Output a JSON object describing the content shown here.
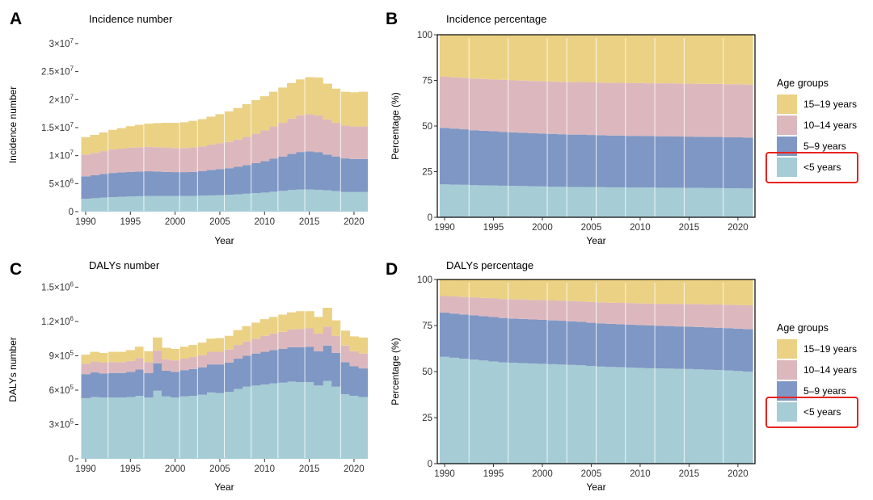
{
  "colors": {
    "u5": "#a6cdd6",
    "y5_9": "#7f97c4",
    "y10_14": "#dcb8be",
    "y15_19": "#ebd184",
    "highlight": "#e8231e"
  },
  "chart_data": [
    {
      "tag": "A",
      "title": "Incidence number",
      "type": "area",
      "stacked": true,
      "xlabel": "Year",
      "ylabel": "Incidence number",
      "x": [
        1990,
        1991,
        1992,
        1993,
        1994,
        1995,
        1996,
        1997,
        1998,
        1999,
        2000,
        2001,
        2002,
        2003,
        2004,
        2005,
        2006,
        2007,
        2008,
        2009,
        2010,
        2011,
        2012,
        2013,
        2014,
        2015,
        2016,
        2017,
        2018,
        2019,
        2020,
        2021
      ],
      "ylim": [
        0,
        31000000
      ],
      "y_ticks": [
        0,
        5000000,
        10000000,
        15000000,
        20000000,
        25000000,
        30000000
      ],
      "y_tick_labels": [
        {
          "base": "0",
          "exp": ""
        },
        {
          "base": "5×10",
          "exp": "6"
        },
        {
          "base": "1×10",
          "exp": "7"
        },
        {
          "base": "1.5×10",
          "exp": "7"
        },
        {
          "base": "2×10",
          "exp": "7"
        },
        {
          "base": "2.5×10",
          "exp": "7"
        },
        {
          "base": "3×10",
          "exp": "7"
        }
      ],
      "x_ticks": [
        1990,
        1995,
        2000,
        2005,
        2010,
        2015,
        2020
      ],
      "panel_border": false,
      "series": [
        {
          "name": "<5 years",
          "key": "u5",
          "values": [
            2300000,
            2400000,
            2500000,
            2600000,
            2650000,
            2700000,
            2750000,
            2800000,
            2800000,
            2800000,
            2800000,
            2800000,
            2800000,
            2850000,
            2900000,
            2950000,
            3000000,
            3100000,
            3200000,
            3300000,
            3400000,
            3550000,
            3700000,
            3850000,
            3950000,
            3950000,
            3900000,
            3800000,
            3650000,
            3500000,
            3500000,
            3500000
          ]
        },
        {
          "name": "5–9 years",
          "key": "y5_9",
          "values": [
            4000000,
            4100000,
            4200000,
            4300000,
            4350000,
            4400000,
            4400000,
            4400000,
            4350000,
            4300000,
            4250000,
            4250000,
            4300000,
            4400000,
            4550000,
            4650000,
            4750000,
            4900000,
            5100000,
            5350000,
            5600000,
            5900000,
            6150000,
            6450000,
            6700000,
            6800000,
            6700000,
            6400000,
            6200000,
            6000000,
            5900000,
            5900000
          ]
        },
        {
          "name": "10–14 years",
          "key": "y10_14",
          "values": [
            3900000,
            4000000,
            4100000,
            4200000,
            4250000,
            4300000,
            4350000,
            4350000,
            4350000,
            4350000,
            4300000,
            4300000,
            4350000,
            4400000,
            4500000,
            4600000,
            4700000,
            4850000,
            5050000,
            5250000,
            5500000,
            5750000,
            6000000,
            6300000,
            6550000,
            6650000,
            6550000,
            6250000,
            6000000,
            5850000,
            5800000,
            5800000
          ]
        },
        {
          "name": "15–19 years",
          "key": "y15_19",
          "values": [
            3100000,
            3200000,
            3350000,
            3500000,
            3650000,
            3850000,
            4000000,
            4150000,
            4300000,
            4400000,
            4500000,
            4600000,
            4750000,
            4850000,
            5000000,
            5200000,
            5450000,
            5650000,
            5850000,
            6000000,
            6100000,
            6200000,
            6300000,
            6350000,
            6400000,
            6600000,
            6800000,
            6400000,
            6100000,
            6050000,
            6100000,
            6200000
          ]
        }
      ]
    },
    {
      "tag": "B",
      "title": "Incidence percentage",
      "type": "area",
      "stacked": true,
      "xlabel": "Year",
      "ylabel": "Percentage (%)",
      "x": [
        1990,
        1991,
        1992,
        1993,
        1994,
        1995,
        1996,
        1997,
        1998,
        1999,
        2000,
        2001,
        2002,
        2003,
        2004,
        2005,
        2006,
        2007,
        2008,
        2009,
        2010,
        2011,
        2012,
        2013,
        2014,
        2015,
        2016,
        2017,
        2018,
        2019,
        2020,
        2021
      ],
      "ylim": [
        0,
        100
      ],
      "y_ticks": [
        0,
        25,
        50,
        75,
        100
      ],
      "y_tick_labels": [
        {
          "base": "0",
          "exp": ""
        },
        {
          "base": "25",
          "exp": ""
        },
        {
          "base": "50",
          "exp": ""
        },
        {
          "base": "75",
          "exp": ""
        },
        {
          "base": "100",
          "exp": ""
        }
      ],
      "x_ticks": [
        1990,
        1995,
        2000,
        2005,
        2010,
        2015,
        2020
      ],
      "panel_border": true,
      "series": [
        {
          "name": "<5 years",
          "key": "u5",
          "values": [
            18.0,
            17.9,
            17.8,
            17.6,
            17.5,
            17.4,
            17.3,
            17.2,
            17.1,
            17.0,
            16.9,
            16.8,
            16.7,
            16.6,
            16.6,
            16.5,
            16.5,
            16.4,
            16.4,
            16.3,
            16.3,
            16.3,
            16.2,
            16.2,
            16.2,
            16.1,
            16.1,
            16.0,
            16.0,
            15.9,
            15.9,
            15.8
          ]
        },
        {
          "name": "5–9 years",
          "key": "y5_9",
          "values": [
            31.0,
            30.7,
            30.4,
            30.1,
            29.9,
            29.7,
            29.5,
            29.3,
            29.2,
            29.1,
            29.0,
            28.9,
            28.8,
            28.7,
            28.7,
            28.6,
            28.5,
            28.4,
            28.4,
            28.3,
            28.3,
            28.2,
            28.2,
            28.2,
            28.1,
            28.1,
            28.0,
            28.0,
            28.0,
            27.9,
            27.9,
            27.8
          ]
        },
        {
          "name": "10–14 years",
          "key": "y10_14",
          "values": [
            28.0,
            28.1,
            28.2,
            28.3,
            28.4,
            28.4,
            28.5,
            28.5,
            28.6,
            28.6,
            28.6,
            28.7,
            28.7,
            28.7,
            28.8,
            28.8,
            28.8,
            28.8,
            28.9,
            28.9,
            28.9,
            28.9,
            29.0,
            29.0,
            29.0,
            29.0,
            29.0,
            29.1,
            29.1,
            29.1,
            29.1,
            29.1
          ]
        },
        {
          "name": "15–19 years",
          "key": "y15_19",
          "values": [
            23.0,
            23.3,
            23.6,
            24.0,
            24.2,
            24.5,
            24.7,
            25.0,
            25.1,
            25.3,
            25.5,
            25.6,
            25.8,
            26.0,
            25.9,
            26.1,
            26.2,
            26.4,
            26.3,
            26.5,
            26.5,
            26.6,
            26.6,
            26.6,
            26.7,
            26.8,
            26.9,
            26.9,
            26.9,
            27.1,
            27.1,
            27.3
          ]
        }
      ]
    },
    {
      "tag": "C",
      "title": "DALYs number",
      "type": "area",
      "stacked": true,
      "xlabel": "Year",
      "ylabel": "DALYs number",
      "x": [
        1990,
        1991,
        1992,
        1993,
        1994,
        1995,
        1996,
        1997,
        1998,
        1999,
        2000,
        2001,
        2002,
        2003,
        2004,
        2005,
        2006,
        2007,
        2008,
        2009,
        2010,
        2011,
        2012,
        2013,
        2014,
        2015,
        2016,
        2017,
        2018,
        2019,
        2020,
        2021
      ],
      "ylim": [
        0,
        1560000
      ],
      "y_ticks": [
        0,
        300000,
        600000,
        900000,
        1200000,
        1500000
      ],
      "y_tick_labels": [
        {
          "base": "0",
          "exp": ""
        },
        {
          "base": "3×10",
          "exp": "5"
        },
        {
          "base": "6×10",
          "exp": "5"
        },
        {
          "base": "9×10",
          "exp": "5"
        },
        {
          "base": "1.2×10",
          "exp": "6"
        },
        {
          "base": "1.5×10",
          "exp": "6"
        }
      ],
      "x_ticks": [
        1990,
        1995,
        2000,
        2005,
        2010,
        2015,
        2020
      ],
      "panel_border": false,
      "series": [
        {
          "name": "<5 years",
          "key": "u5",
          "values": [
            530000,
            540000,
            535000,
            535000,
            535000,
            540000,
            550000,
            535000,
            595000,
            545000,
            535000,
            545000,
            550000,
            560000,
            580000,
            575000,
            585000,
            610000,
            630000,
            640000,
            650000,
            660000,
            665000,
            675000,
            670000,
            670000,
            640000,
            680000,
            630000,
            565000,
            550000,
            540000
          ]
        },
        {
          "name": "5–9 years",
          "key": "y5_9",
          "values": [
            210000,
            215000,
            210000,
            215000,
            215000,
            220000,
            230000,
            215000,
            240000,
            225000,
            225000,
            230000,
            235000,
            240000,
            245000,
            250000,
            255000,
            265000,
            270000,
            280000,
            285000,
            290000,
            295000,
            300000,
            305000,
            310000,
            300000,
            310000,
            295000,
            280000,
            260000,
            250000
          ]
        },
        {
          "name": "10–14 years",
          "key": "y10_14",
          "values": [
            90000,
            95000,
            95000,
            95000,
            95000,
            95000,
            100000,
            95000,
            110000,
            100000,
            100000,
            100000,
            105000,
            105000,
            110000,
            110000,
            115000,
            120000,
            125000,
            130000,
            140000,
            145000,
            150000,
            155000,
            160000,
            160000,
            155000,
            165000,
            150000,
            145000,
            130000,
            130000
          ]
        },
        {
          "name": "15–19 years",
          "key": "y15_19",
          "values": [
            80000,
            85000,
            85000,
            90000,
            90000,
            95000,
            100000,
            95000,
            115000,
            100000,
            100000,
            105000,
            105000,
            110000,
            115000,
            120000,
            120000,
            130000,
            135000,
            140000,
            145000,
            145000,
            150000,
            150000,
            155000,
            150000,
            145000,
            165000,
            135000,
            130000,
            130000,
            140000
          ]
        }
      ]
    },
    {
      "tag": "D",
      "title": "DALYs percentage",
      "type": "area",
      "stacked": true,
      "xlabel": "Year",
      "ylabel": "Percentage (%)",
      "x": [
        1990,
        1991,
        1992,
        1993,
        1994,
        1995,
        1996,
        1997,
        1998,
        1999,
        2000,
        2001,
        2002,
        2003,
        2004,
        2005,
        2006,
        2007,
        2008,
        2009,
        2010,
        2011,
        2012,
        2013,
        2014,
        2015,
        2016,
        2017,
        2018,
        2019,
        2020,
        2021
      ],
      "ylim": [
        0,
        100
      ],
      "y_ticks": [
        0,
        25,
        50,
        75,
        100
      ],
      "y_tick_labels": [
        {
          "base": "0",
          "exp": ""
        },
        {
          "base": "25",
          "exp": ""
        },
        {
          "base": "50",
          "exp": ""
        },
        {
          "base": "75",
          "exp": ""
        },
        {
          "base": "100",
          "exp": ""
        }
      ],
      "x_ticks": [
        1990,
        1995,
        2000,
        2005,
        2010,
        2015,
        2020
      ],
      "panel_border": true,
      "series": [
        {
          "name": "<5 years",
          "key": "u5",
          "values": [
            58.0,
            57.5,
            57.0,
            56.5,
            56.0,
            55.5,
            55.0,
            54.8,
            54.6,
            54.4,
            54.2,
            54.0,
            53.8,
            53.6,
            53.4,
            53.0,
            52.7,
            52.5,
            52.4,
            52.2,
            52.0,
            51.8,
            51.7,
            51.6,
            51.5,
            51.4,
            51.2,
            51.0,
            50.8,
            50.6,
            50.3,
            50.0
          ]
        },
        {
          "name": "5–9 years",
          "key": "y5_9",
          "values": [
            24.0,
            24.0,
            24.0,
            24.1,
            24.1,
            24.1,
            24.1,
            24.0,
            24.0,
            23.9,
            23.9,
            23.8,
            23.8,
            23.7,
            23.6,
            23.5,
            23.5,
            23.4,
            23.3,
            23.3,
            23.2,
            23.2,
            23.1,
            23.1,
            23.0,
            23.0,
            23.0,
            23.0,
            23.0,
            23.0,
            23.0,
            23.0
          ]
        },
        {
          "name": "10–14 years",
          "key": "y10_14",
          "values": [
            9.0,
            9.3,
            9.5,
            9.7,
            9.9,
            10.1,
            10.3,
            10.4,
            10.5,
            10.6,
            10.7,
            10.8,
            10.9,
            11.0,
            11.1,
            11.3,
            11.4,
            11.5,
            11.6,
            11.7,
            11.8,
            11.9,
            12.0,
            12.1,
            12.2,
            12.3,
            12.4,
            12.5,
            12.6,
            12.7,
            12.8,
            13.0
          ]
        },
        {
          "name": "15–19 years",
          "key": "y15_19",
          "values": [
            9.0,
            9.2,
            9.5,
            9.7,
            10.0,
            10.3,
            10.6,
            10.8,
            10.9,
            11.1,
            11.2,
            11.4,
            11.5,
            11.7,
            11.9,
            12.2,
            12.4,
            12.6,
            12.7,
            12.8,
            13.0,
            13.1,
            13.2,
            13.2,
            13.3,
            13.3,
            13.4,
            13.5,
            13.6,
            13.7,
            13.9,
            14.0
          ]
        }
      ]
    }
  ],
  "legends": [
    {
      "title": "Age groups",
      "items": [
        {
          "key": "y15_19",
          "label": "15–19 years"
        },
        {
          "key": "y10_14",
          "label": "10–14 years"
        },
        {
          "key": "y5_9",
          "label": "5–9 years"
        },
        {
          "key": "u5",
          "label": "<5 years",
          "highlighted": true
        }
      ]
    },
    {
      "title": "Age groups",
      "items": [
        {
          "key": "y15_19",
          "label": "15–19 years"
        },
        {
          "key": "y10_14",
          "label": "10–14 years"
        },
        {
          "key": "y5_9",
          "label": "5–9 years"
        },
        {
          "key": "u5",
          "label": "<5 years",
          "highlighted": true
        }
      ]
    }
  ]
}
